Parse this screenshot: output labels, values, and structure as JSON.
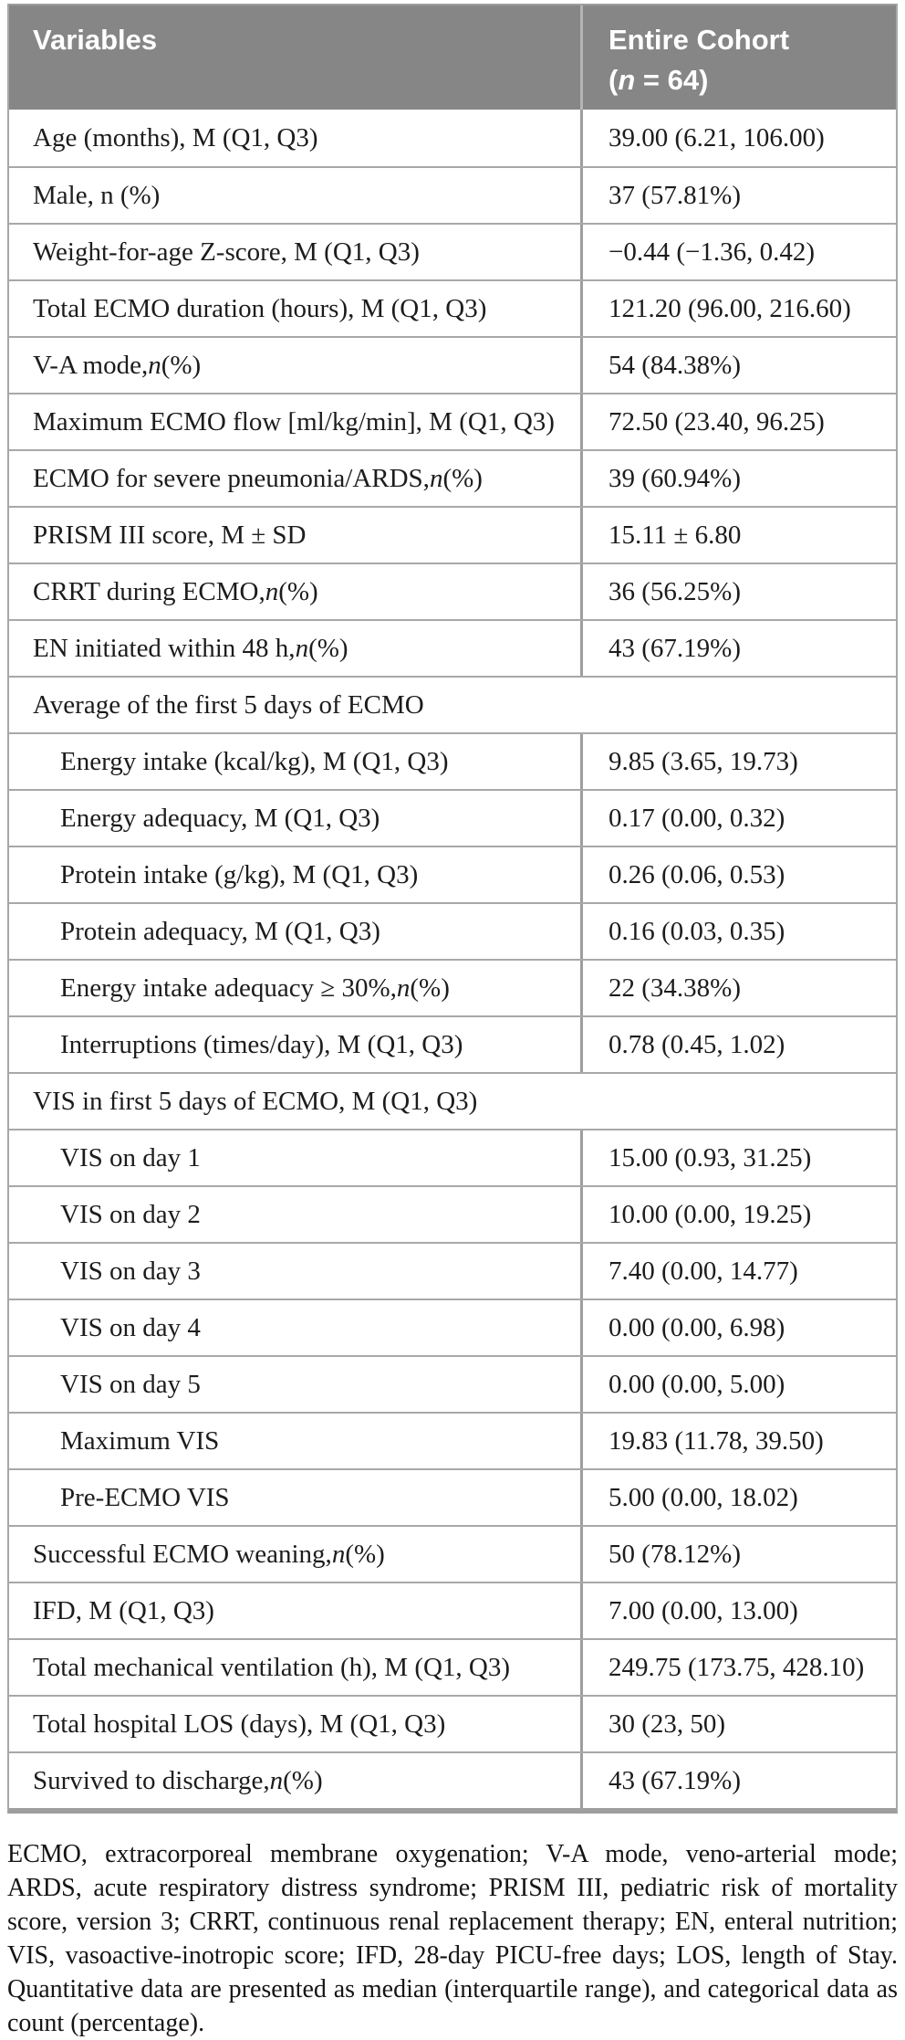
{
  "colors": {
    "header_bg": "#868686",
    "header_text": "#ffffff",
    "row_border": "#a8a8a8",
    "column_divider": "#9e9e9e",
    "body_text": "#1c1c1c"
  },
  "table": {
    "header": {
      "variables": "Variables",
      "cohort_line1": "Entire Cohort",
      "cohort_line2": "(<i>n</i> = 64)"
    },
    "rows": [
      {
        "label": "Age (months), M (Q1, Q3)",
        "value": "39.00 (6.21, 106.00)",
        "section": false,
        "indent": false
      },
      {
        "label": "Male, n (%)",
        "value": "37 (57.81%)",
        "section": false,
        "indent": false
      },
      {
        "label": "Weight-for-age Z-score, M (Q1, Q3)",
        "value": "−0.44 (−1.36, 0.42)",
        "section": false,
        "indent": false
      },
      {
        "label": "Total ECMO duration (hours), M (Q1, Q3)",
        "value": "121.20 (96.00, 216.60)",
        "section": false,
        "indent": false
      },
      {
        "label": "V-A mode, <i>n</i> (%)",
        "value": "54 (84.38%)",
        "section": false,
        "indent": false
      },
      {
        "label": "Maximum ECMO flow [ml/kg/min], M (Q1, Q3)",
        "value": "72.50 (23.40, 96.25)",
        "section": false,
        "indent": false
      },
      {
        "label": "ECMO for severe pneumonia/ARDS, <i>n</i> (%)",
        "value": "39 (60.94%)",
        "section": false,
        "indent": false
      },
      {
        "label": "PRISM III score, M ± SD",
        "value": "15.11 ± 6.80",
        "section": false,
        "indent": false
      },
      {
        "label": "CRRT during ECMO, <i>n</i> (%)",
        "value": "36 (56.25%)",
        "section": false,
        "indent": false
      },
      {
        "label": "EN initiated within 48 h, <i>n</i> (%)",
        "value": "43 (67.19%)",
        "section": false,
        "indent": false
      },
      {
        "label": "Average of the first 5 days of ECMO",
        "value": "",
        "section": true,
        "indent": false
      },
      {
        "label": "Energy intake (kcal/kg), M (Q1, Q3)",
        "value": "9.85 (3.65, 19.73)",
        "section": false,
        "indent": true
      },
      {
        "label": "Energy adequacy, M (Q1, Q3)",
        "value": "0.17 (0.00, 0.32)",
        "section": false,
        "indent": true
      },
      {
        "label": "Protein intake (g/kg), M (Q1, Q3)",
        "value": "0.26 (0.06, 0.53)",
        "section": false,
        "indent": true
      },
      {
        "label": "Protein adequacy, M (Q1, Q3)",
        "value": "0.16 (0.03, 0.35)",
        "section": false,
        "indent": true
      },
      {
        "label": "Energy intake adequacy ≥ 30%, <i>n</i> (%)",
        "value": "22 (34.38%)",
        "section": false,
        "indent": true
      },
      {
        "label": "Interruptions (times/day), M (Q1, Q3)",
        "value": "0.78 (0.45, 1.02)",
        "section": false,
        "indent": true
      },
      {
        "label": "VIS in first 5 days of ECMO, M (Q1, Q3)",
        "value": "",
        "section": true,
        "indent": false
      },
      {
        "label": "VIS on day 1",
        "value": "15.00 (0.93, 31.25)",
        "section": false,
        "indent": true
      },
      {
        "label": "VIS on day 2",
        "value": "10.00 (0.00, 19.25)",
        "section": false,
        "indent": true
      },
      {
        "label": "VIS on day 3",
        "value": "7.40 (0.00, 14.77)",
        "section": false,
        "indent": true
      },
      {
        "label": "VIS on day 4",
        "value": "0.00 (0.00, 6.98)",
        "section": false,
        "indent": true
      },
      {
        "label": "VIS on day 5",
        "value": "0.00 (0.00, 5.00)",
        "section": false,
        "indent": true
      },
      {
        "label": "Maximum VIS",
        "value": "19.83 (11.78, 39.50)",
        "section": false,
        "indent": true
      },
      {
        "label": "Pre-ECMO VIS",
        "value": "5.00 (0.00, 18.02)",
        "section": false,
        "indent": true
      },
      {
        "label": "Successful ECMO weaning, <i>n</i> (%)",
        "value": "50 (78.12%)",
        "section": false,
        "indent": false
      },
      {
        "label": "IFD, M (Q1, Q3)",
        "value": "7.00 (0.00, 13.00)",
        "section": false,
        "indent": false
      },
      {
        "label": "Total mechanical ventilation (h), M (Q1, Q3)",
        "value": "249.75 (173.75, 428.10)",
        "section": false,
        "indent": false
      },
      {
        "label": "Total hospital LOS (days), M (Q1, Q3)",
        "value": "30 (23, 50)",
        "section": false,
        "indent": false
      },
      {
        "label": "Survived to discharge, <i>n</i> (%)",
        "value": "43 (67.19%)",
        "section": false,
        "indent": false
      }
    ]
  },
  "footnote": "ECMO, extracorporeal membrane oxygenation; V-A mode, veno-arterial mode; ARDS, acute respiratory distress syndrome; PRISM III, pediatric risk of mortality score, version 3; CRRT, continuous renal replacement therapy; EN, enteral nutrition; VIS, vasoactive-inotropic score; IFD, 28-day PICU-free days; LOS, length of Stay. Quantitative data are presented as median (interquartile range), and categorical data as count (percentage)."
}
